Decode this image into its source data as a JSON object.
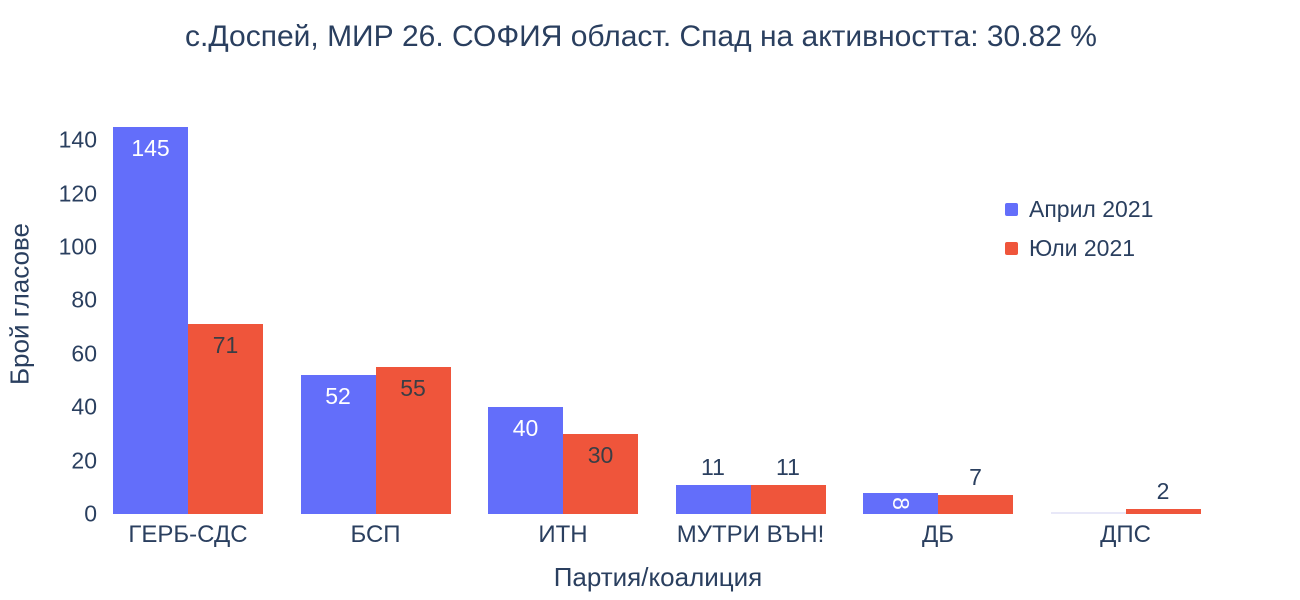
{
  "chart_data": {
    "type": "bar",
    "title": "с.Доспей, МИР 26. СОФИЯ област. Спад на активността: 30.82 %",
    "xlabel": "Партия/коалиция",
    "ylabel": "Брой гласове",
    "categories": [
      "ГЕРБ-СДС",
      "БСП",
      "ИТН",
      "МУТРИ ВЪН!",
      "ДБ",
      "ДПС"
    ],
    "series": [
      {
        "name": "Април 2021",
        "color": "#636EFA",
        "values": [
          145,
          52,
          40,
          11,
          8,
          0
        ],
        "label_placement": [
          "inside",
          "inside",
          "inside",
          "outside",
          "inside-rotated",
          "none"
        ],
        "inside_label_color": "#FFFFFF"
      },
      {
        "name": "Юли 2021",
        "color": "#EF553B",
        "values": [
          71,
          55,
          30,
          11,
          7,
          2
        ],
        "label_placement": [
          "inside",
          "inside",
          "inside",
          "outside",
          "outside",
          "outside"
        ],
        "inside_label_color": "#3A3E45"
      }
    ],
    "yticks": [
      0,
      20,
      40,
      60,
      80,
      100,
      120,
      140
    ],
    "ylim": [
      0,
      145
    ],
    "grid": false,
    "axis_lines": false,
    "legend_position": "inside-right",
    "text_color": "#2A3F5F",
    "outside_label_color": "#2A3F5F",
    "zero_bar_color": "#E8E8F8",
    "background_color": "#FFFFFF"
  }
}
